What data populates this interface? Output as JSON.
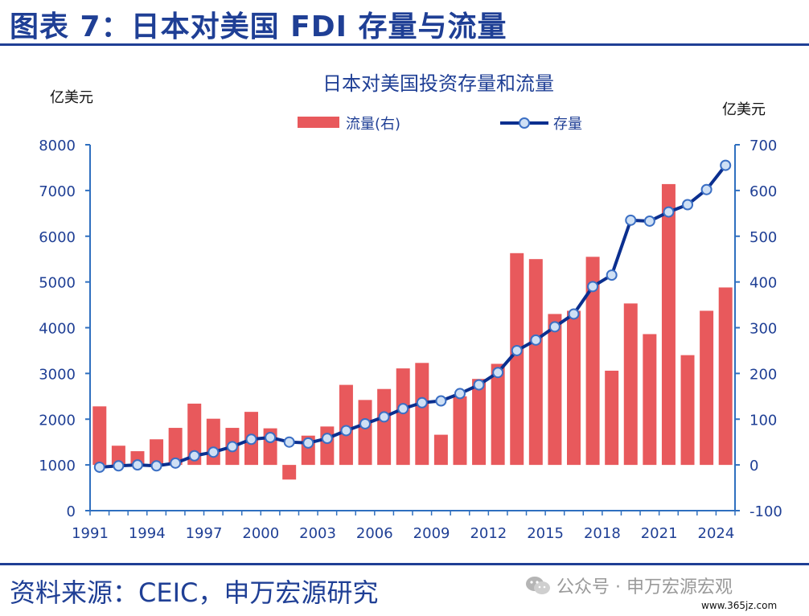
{
  "page_title": "图表 7：日本对美国 FDI 存量与流量",
  "source_text": "资料来源：CEIC，申万宏源研究",
  "watermark_text": "公众号 · 申万宏源宏观",
  "watermark_icon": "wechat-icon",
  "site_url": "www.365jz.com",
  "colors": {
    "accent": "#1f3f95",
    "bar": "#e8595c",
    "line": "#0b2f8f"
  },
  "chart_data": {
    "type": "bar+line",
    "title": "日本对美国投资存量和流量",
    "left_unit": "亿美元",
    "right_unit": "亿美元",
    "x": [
      1991,
      1992,
      1993,
      1994,
      1995,
      1996,
      1997,
      1998,
      1999,
      2000,
      2001,
      2002,
      2003,
      2004,
      2005,
      2006,
      2007,
      2008,
      2009,
      2010,
      2011,
      2012,
      2013,
      2014,
      2015,
      2016,
      2017,
      2018,
      2019,
      2020,
      2021,
      2022,
      2023,
      2024
    ],
    "x_ticks": [
      "1991",
      "1994",
      "1997",
      "2000",
      "2003",
      "2006",
      "2009",
      "2012",
      "2015",
      "2018",
      "2021",
      "2024"
    ],
    "left_axis": {
      "ylim": [
        0,
        8000
      ],
      "ticks": [
        "0",
        "1000",
        "2000",
        "3000",
        "4000",
        "5000",
        "6000",
        "7000",
        "8000"
      ]
    },
    "right_axis": {
      "ylim": [
        -100,
        700
      ],
      "ticks": [
        "-100",
        "0",
        "100",
        "200",
        "300",
        "400",
        "500",
        "600",
        "700"
      ]
    },
    "series": [
      {
        "name": "流量(右)",
        "type": "bar",
        "axis": "right",
        "values": [
          128,
          42,
          30,
          56,
          81,
          134,
          101,
          81,
          116,
          80,
          -32,
          64,
          84,
          175,
          142,
          166,
          211,
          223,
          66,
          150,
          188,
          221,
          463,
          450,
          330,
          337,
          455,
          206,
          353,
          286,
          614,
          240,
          337,
          388
        ]
      },
      {
        "name": "存量",
        "type": "line",
        "axis": "left",
        "values": [
          950,
          980,
          1000,
          980,
          1040,
          1200,
          1280,
          1400,
          1560,
          1600,
          1500,
          1480,
          1580,
          1750,
          1900,
          2050,
          2230,
          2360,
          2400,
          2560,
          2750,
          3020,
          3500,
          3730,
          4020,
          4300,
          4900,
          5150,
          6350,
          6330,
          6530,
          6690,
          7020,
          7550
        ]
      }
    ],
    "grid": false,
    "legend": "top"
  }
}
